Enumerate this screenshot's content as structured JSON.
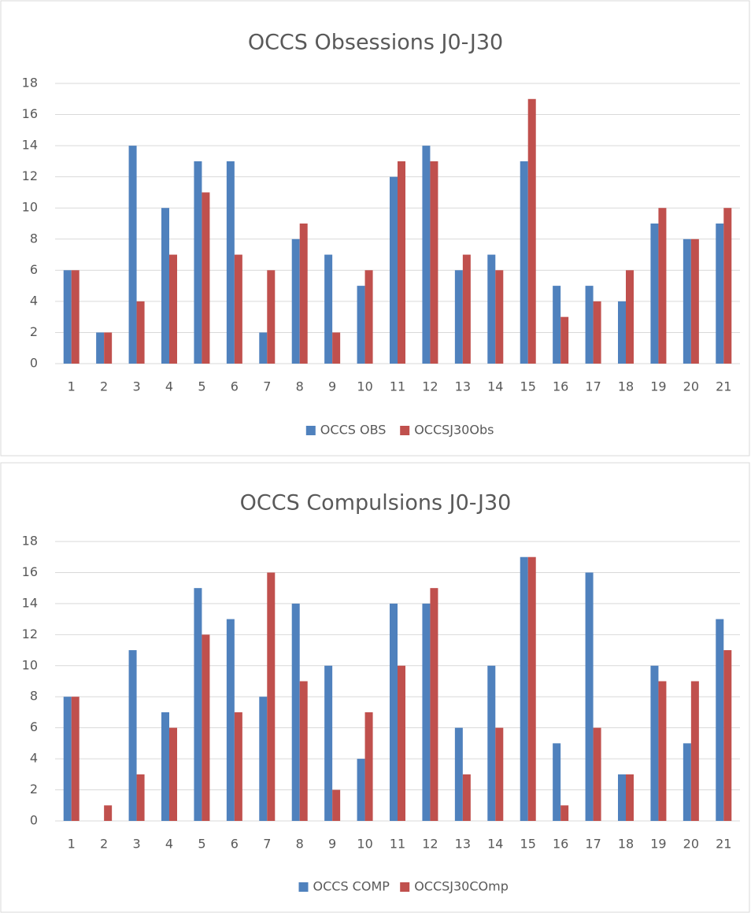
{
  "chart_data": [
    {
      "type": "bar",
      "title": "OCCS Obsessions J0-J30",
      "categories": [
        "1",
        "2",
        "3",
        "4",
        "5",
        "6",
        "7",
        "8",
        "9",
        "10",
        "11",
        "12",
        "13",
        "14",
        "15",
        "16",
        "17",
        "18",
        "19",
        "20",
        "21"
      ],
      "series": [
        {
          "name": "OCCS OBS",
          "color": "#4f81bd",
          "values": [
            6,
            2,
            14,
            10,
            13,
            13,
            2,
            8,
            7,
            5,
            12,
            14,
            6,
            7,
            13,
            5,
            5,
            4,
            9,
            8,
            9
          ]
        },
        {
          "name": "OCCSJ30Obs",
          "color": "#c0504d",
          "values": [
            6,
            2,
            4,
            7,
            11,
            7,
            6,
            9,
            2,
            6,
            13,
            13,
            7,
            6,
            17,
            3,
            4,
            6,
            10,
            8,
            10
          ]
        }
      ],
      "ylim": [
        0,
        18
      ],
      "yticks": [
        0,
        2,
        4,
        6,
        8,
        10,
        12,
        14,
        16,
        18
      ],
      "grid": true,
      "legend": "bottom"
    },
    {
      "type": "bar",
      "title": "OCCS Compulsions J0-J30",
      "categories": [
        "1",
        "2",
        "3",
        "4",
        "5",
        "6",
        "7",
        "8",
        "9",
        "10",
        "11",
        "12",
        "13",
        "14",
        "15",
        "16",
        "17",
        "18",
        "19",
        "20",
        "21"
      ],
      "series": [
        {
          "name": "OCCS COMP",
          "color": "#4f81bd",
          "values": [
            8,
            0,
            11,
            7,
            15,
            13,
            8,
            14,
            10,
            4,
            14,
            14,
            6,
            10,
            17,
            5,
            16,
            3,
            10,
            5,
            13
          ]
        },
        {
          "name": "OCCSJ30COmp",
          "color": "#c0504d",
          "values": [
            8,
            1,
            3,
            6,
            12,
            7,
            16,
            9,
            2,
            7,
            10,
            15,
            3,
            6,
            17,
            1,
            6,
            3,
            9,
            9,
            11
          ]
        }
      ],
      "ylim": [
        0,
        18
      ],
      "yticks": [
        0,
        2,
        4,
        6,
        8,
        10,
        12,
        14,
        16,
        18
      ],
      "grid": true,
      "legend": "bottom"
    }
  ]
}
